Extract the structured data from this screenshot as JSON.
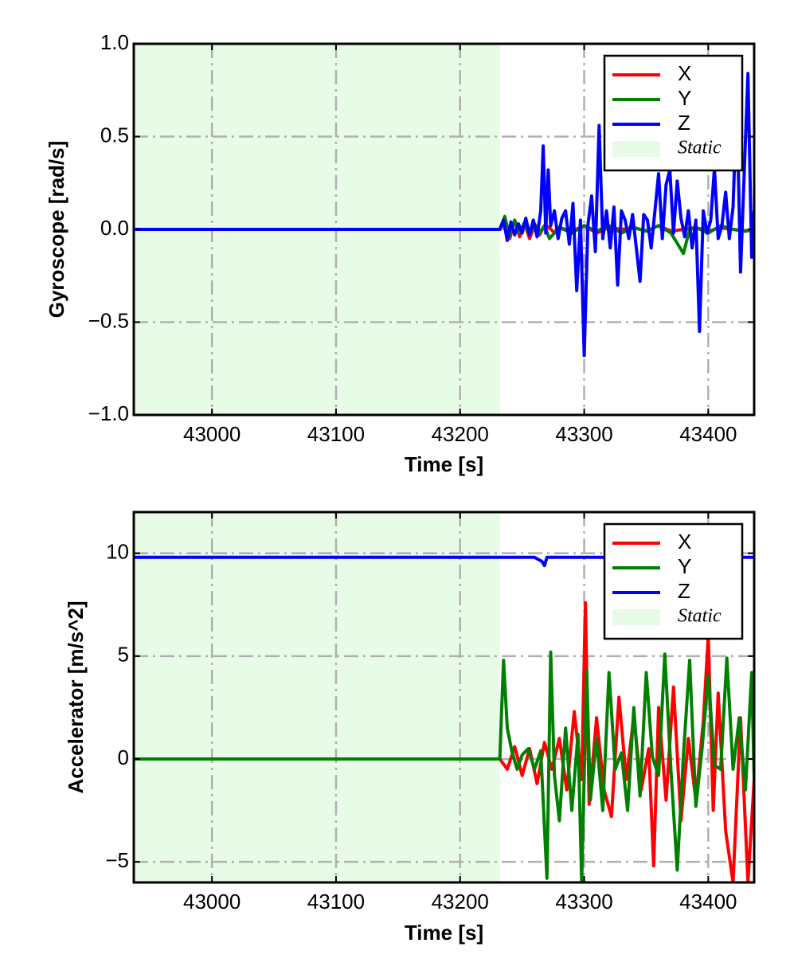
{
  "chart_data": [
    {
      "type": "line",
      "xlabel": "Time [s]",
      "ylabel": "Gyroscope [rad/s]",
      "xlim": [
        42937,
        43437
      ],
      "ylim": [
        -1.0,
        1.0
      ],
      "xticks": [
        43000,
        43100,
        43200,
        43300,
        43400
      ],
      "yticks": [
        -1.0,
        -0.5,
        0.0,
        0.5,
        1.0
      ],
      "ytick_labels": [
        "−1.0",
        "−0.5",
        "0.0",
        "0.5",
        "1.0"
      ],
      "grid": true,
      "legend_position": "top-right",
      "static_region": {
        "label": "Static",
        "x_start": 42937,
        "x_end": 43232,
        "color": "#e8fbe6"
      },
      "series": [
        {
          "name": "X",
          "color": "#ff0000",
          "x": [
            42937,
            43232,
            43236,
            43240,
            43244,
            43248,
            43252,
            43256,
            43260,
            43264,
            43268,
            43272,
            43276,
            43280,
            43290,
            43300,
            43310,
            43320,
            43330,
            43340,
            43350,
            43360,
            43370,
            43380,
            43390,
            43400,
            43410,
            43420,
            43430,
            43437
          ],
          "y": [
            0,
            0,
            0.04,
            -0.05,
            0.05,
            -0.04,
            0.03,
            -0.05,
            0.02,
            -0.03,
            0.02,
            0.01,
            -0.02,
            0.01,
            -0.01,
            0.02,
            -0.02,
            0.01,
            0,
            0.01,
            -0.01,
            0.02,
            -0.01,
            0,
            0.01,
            -0.01,
            0.01,
            0,
            -0.01,
            0
          ]
        },
        {
          "name": "Y",
          "color": "#008000",
          "x": [
            42937,
            43232,
            43236,
            43240,
            43244,
            43248,
            43252,
            43256,
            43260,
            43264,
            43268,
            43272,
            43280,
            43290,
            43300,
            43310,
            43320,
            43330,
            43340,
            43350,
            43360,
            43370,
            43380,
            43385,
            43390,
            43400,
            43410,
            43420,
            43430,
            43437
          ],
          "y": [
            0,
            0,
            0.07,
            -0.04,
            0.05,
            -0.02,
            0.04,
            -0.03,
            0.03,
            -0.02,
            0.02,
            -0.05,
            0.01,
            -0.02,
            0.02,
            -0.01,
            0.02,
            -0.02,
            0.01,
            -0.01,
            0.02,
            -0.02,
            -0.13,
            0,
            0.01,
            -0.02,
            0.02,
            0,
            -0.01,
            0
          ]
        },
        {
          "name": "Z",
          "color": "#0000ff",
          "x": [
            42937,
            43232,
            43235,
            43238,
            43241,
            43244,
            43247,
            43250,
            43253,
            43256,
            43259,
            43262,
            43265,
            43267,
            43269,
            43271,
            43273,
            43276,
            43279,
            43282,
            43285,
            43288,
            43291,
            43294,
            43297,
            43300,
            43303,
            43306,
            43309,
            43312,
            43315,
            43318,
            43321,
            43324,
            43327,
            43330,
            43333,
            43336,
            43339,
            43342,
            43345,
            43348,
            43351,
            43354,
            43357,
            43360,
            43363,
            43366,
            43369,
            43372,
            43375,
            43378,
            43381,
            43384,
            43387,
            43390,
            43393,
            43396,
            43399,
            43402,
            43405,
            43408,
            43411,
            43414,
            43417,
            43420,
            43423,
            43426,
            43429,
            43432,
            43435,
            43437
          ],
          "y": [
            0,
            0,
            0.05,
            -0.06,
            0.04,
            -0.03,
            0.03,
            -0.02,
            0.06,
            -0.03,
            0.05,
            -0.04,
            0.1,
            0.45,
            -0.02,
            0.32,
            0.02,
            0.1,
            -0.05,
            0.06,
            0.1,
            -0.08,
            0.14,
            -0.33,
            0.05,
            -0.68,
            0.02,
            0.18,
            -0.12,
            0.56,
            -0.05,
            0.1,
            -0.1,
            0.12,
            -0.3,
            0.1,
            0.05,
            -0.05,
            0.08,
            -0.1,
            -0.28,
            0.08,
            0.05,
            -0.1,
            0.1,
            0.3,
            -0.05,
            0.24,
            0.32,
            -0.02,
            0.26,
            0.06,
            -0.04,
            0.1,
            -0.1,
            0.05,
            -0.55,
            0.1,
            -0.02,
            0.05,
            0.33,
            -0.05,
            0.02,
            0.2,
            -0.05,
            0.12,
            0.7,
            -0.23,
            0.3,
            0.84,
            -0.15,
            0.1
          ]
        }
      ]
    },
    {
      "type": "line",
      "xlabel": "Time [s]",
      "ylabel": "Accelerator [m/s^2]",
      "xlim": [
        42937,
        43437
      ],
      "ylim": [
        -6,
        12
      ],
      "xticks": [
        43000,
        43100,
        43200,
        43300,
        43400
      ],
      "yticks": [
        -5,
        0,
        5,
        10
      ],
      "ytick_labels": [
        "−5",
        "0",
        "5",
        "10"
      ],
      "grid": true,
      "legend_position": "top-right",
      "static_region": {
        "label": "Static",
        "x_start": 42937,
        "x_end": 43232,
        "color": "#e8fbe6"
      },
      "series": [
        {
          "name": "X",
          "color": "#ff0000",
          "x": [
            42937,
            43232,
            43238,
            43244,
            43250,
            43256,
            43262,
            43268,
            43274,
            43280,
            43286,
            43292,
            43298,
            43301,
            43304,
            43310,
            43316,
            43322,
            43328,
            43334,
            43340,
            43346,
            43352,
            43356,
            43360,
            43366,
            43372,
            43378,
            43384,
            43390,
            43396,
            43400,
            43404,
            43408,
            43414,
            43420,
            43426,
            43432,
            43437
          ],
          "y": [
            0,
            0,
            -0.5,
            0.6,
            -0.8,
            0.5,
            -1.2,
            0.8,
            -0.5,
            1.0,
            -1.5,
            2.3,
            -1.0,
            7.6,
            -2.2,
            2.0,
            -1.5,
            -2.8,
            3.0,
            -1.0,
            2.1,
            -1.5,
            0.5,
            -5.2,
            2.5,
            -2.0,
            3.5,
            -3.0,
            1.0,
            -2.0,
            1.8,
            6.0,
            -2.5,
            3.2,
            -3.5,
            -6.0,
            2.0,
            -6.0,
            -1.0
          ]
        },
        {
          "name": "Y",
          "color": "#008000",
          "x": [
            42937,
            43232,
            43235,
            43238,
            43242,
            43246,
            43250,
            43255,
            43260,
            43265,
            43270,
            43273,
            43276,
            43280,
            43285,
            43290,
            43295,
            43298,
            43302,
            43305,
            43310,
            43315,
            43320,
            43325,
            43330,
            43335,
            43340,
            43345,
            43350,
            43355,
            43360,
            43365,
            43370,
            43375,
            43380,
            43385,
            43390,
            43395,
            43400,
            43405,
            43410,
            43415,
            43420,
            43425,
            43430,
            43435,
            43437
          ],
          "y": [
            0,
            0,
            4.8,
            1.5,
            0.3,
            -0.5,
            0.2,
            0.5,
            -0.5,
            0.4,
            -5.8,
            5.2,
            -0.8,
            -3.0,
            1.5,
            -2.5,
            1.2,
            -6.0,
            4.3,
            -2.0,
            1.0,
            -2.5,
            4.2,
            -0.5,
            0.3,
            -2.5,
            2.5,
            -1.8,
            4.2,
            0.1,
            -0.8,
            5.1,
            -0.6,
            -5.4,
            0.2,
            4.8,
            -2.3,
            0.5,
            4.1,
            -0.3,
            -0.5,
            4.9,
            -0.5,
            2.0,
            -1.5,
            4.2,
            -1.0
          ]
        },
        {
          "name": "Z",
          "color": "#0000ff",
          "x": [
            42937,
            43232,
            43260,
            43266,
            43268,
            43270,
            43300,
            43437
          ],
          "y": [
            9.8,
            9.8,
            9.8,
            9.6,
            9.4,
            9.8,
            9.8,
            9.8
          ]
        }
      ]
    }
  ]
}
